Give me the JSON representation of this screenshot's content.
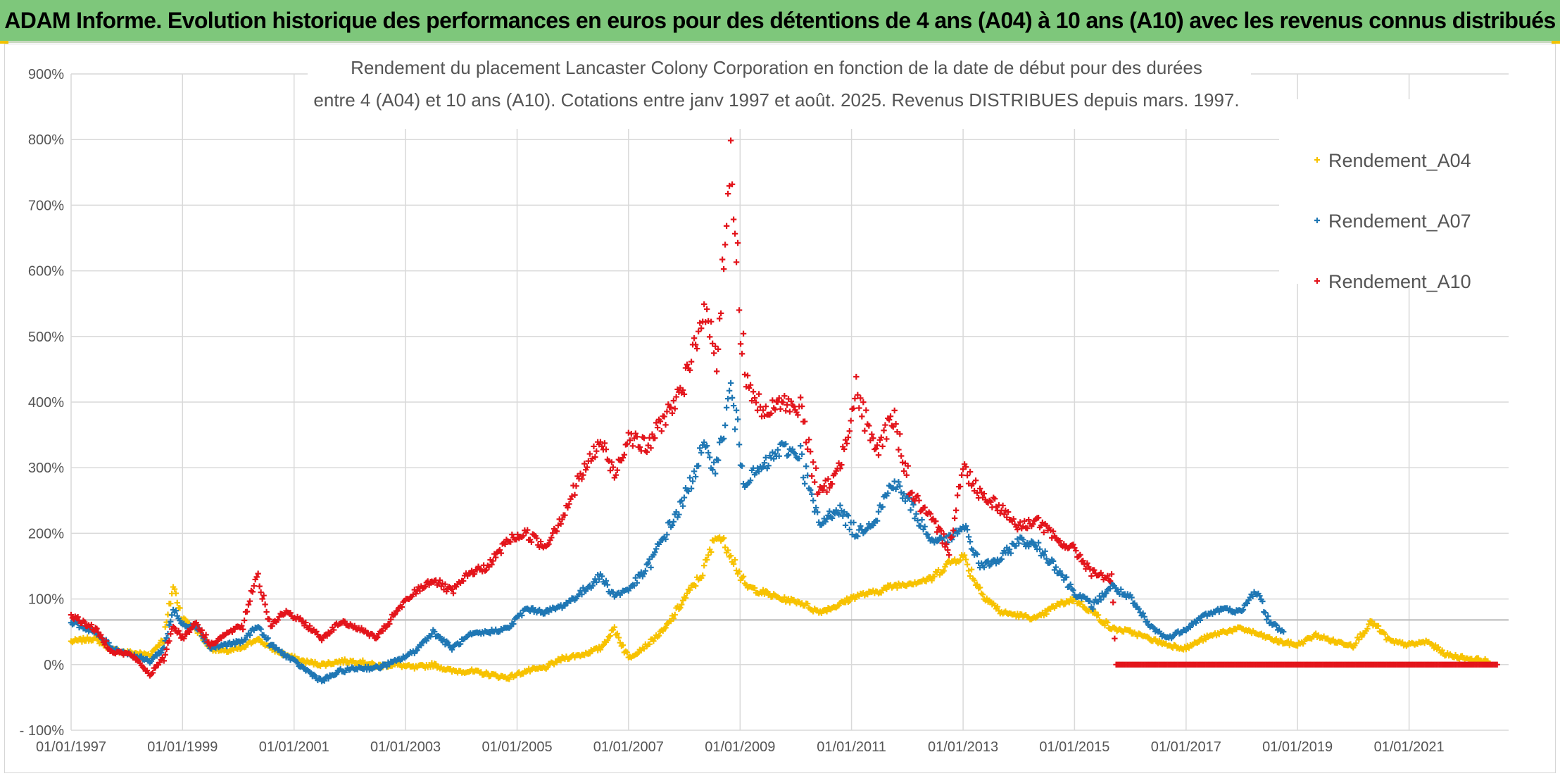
{
  "header": {
    "banner_title": "ADAM Informe. Evolution historique des performances en euros pour des détentions de 4 ans (A04) à 10 ans (A10) avec les revenus connus distribués"
  },
  "colors": {
    "banner_bg": "#7ec77b",
    "corner_accent": "#f2c200",
    "Rendement_A04": "#f7c200",
    "Rendement_A07": "#1f77b4",
    "Rendement_A10": "#e3141b"
  },
  "chart_data": {
    "type": "scatter",
    "title_lines": [
      "Rendement du placement Lancaster Colony Corporation en fonction de la date de début pour des durées",
      "entre 4 (A04) et 10 ans (A10). Cotations entre janv 1997 et août. 2025. Revenus DISTRIBUES depuis mars. 1997."
    ],
    "y_ticks": [
      "900%",
      "800%",
      "700%",
      "600%",
      "500%",
      "400%",
      "300%",
      "200%",
      "100%",
      "0%",
      "- 100%"
    ],
    "x_ticks": [
      "01/01/1997",
      "01/01/1999",
      "01/01/2001",
      "01/01/2003",
      "01/01/2005",
      "01/01/2007",
      "01/01/2009",
      "01/01/2011",
      "01/01/2013",
      "01/01/2015",
      "01/01/2017",
      "01/01/2019",
      "01/01/2021"
    ],
    "ylim": [
      -100,
      900
    ],
    "xlim": [
      "1997-01-01",
      "2022-10-15"
    ],
    "grid": true,
    "legend_position": "top-right",
    "marker": "+",
    "reference_line_y": 68,
    "series": [
      {
        "name": "Rendement_A04",
        "points": [
          [
            "1997-01-01",
            35
          ],
          [
            "1997-06-01",
            40
          ],
          [
            "1997-10-01",
            22
          ],
          [
            "1998-02-01",
            18
          ],
          [
            "1998-06-01",
            15
          ],
          [
            "1998-09-01",
            40
          ],
          [
            "1998-11-01",
            120
          ],
          [
            "1999-01-01",
            70
          ],
          [
            "1999-04-01",
            55
          ],
          [
            "1999-07-01",
            25
          ],
          [
            "1999-10-01",
            20
          ],
          [
            "2000-02-01",
            25
          ],
          [
            "2000-05-01",
            40
          ],
          [
            "2000-08-01",
            25
          ],
          [
            "2000-11-01",
            15
          ],
          [
            "2001-03-01",
            5
          ],
          [
            "2001-07-01",
            0
          ],
          [
            "2001-11-01",
            5
          ],
          [
            "2002-03-01",
            5
          ],
          [
            "2002-07-01",
            -2
          ],
          [
            "2002-11-01",
            0
          ],
          [
            "2003-03-01",
            -5
          ],
          [
            "2003-07-01",
            0
          ],
          [
            "2003-11-01",
            -10
          ],
          [
            "2004-03-01",
            -10
          ],
          [
            "2004-07-01",
            -15
          ],
          [
            "2004-11-01",
            -20
          ],
          [
            "2005-03-01",
            -10
          ],
          [
            "2005-07-01",
            -5
          ],
          [
            "2005-11-01",
            10
          ],
          [
            "2006-03-01",
            15
          ],
          [
            "2006-07-01",
            25
          ],
          [
            "2006-10-01",
            55
          ],
          [
            "2007-01-01",
            10
          ],
          [
            "2007-05-01",
            30
          ],
          [
            "2007-09-01",
            55
          ],
          [
            "2008-01-01",
            100
          ],
          [
            "2008-05-01",
            140
          ],
          [
            "2008-08-01",
            200
          ],
          [
            "2008-11-01",
            170
          ],
          [
            "2009-02-01",
            120
          ],
          [
            "2009-06-01",
            110
          ],
          [
            "2009-10-01",
            100
          ],
          [
            "2010-02-01",
            95
          ],
          [
            "2010-06-01",
            80
          ],
          [
            "2010-10-01",
            90
          ],
          [
            "2011-02-01",
            105
          ],
          [
            "2011-06-01",
            110
          ],
          [
            "2011-10-01",
            120
          ],
          [
            "2012-02-01",
            125
          ],
          [
            "2012-06-01",
            130
          ],
          [
            "2012-10-01",
            155
          ],
          [
            "2013-01-01",
            165
          ],
          [
            "2013-05-01",
            110
          ],
          [
            "2013-09-01",
            80
          ],
          [
            "2014-01-01",
            75
          ],
          [
            "2014-05-01",
            70
          ],
          [
            "2014-09-01",
            90
          ],
          [
            "2015-01-01",
            100
          ],
          [
            "2015-05-01",
            80
          ],
          [
            "2015-09-01",
            55
          ],
          [
            "2016-01-01",
            50
          ],
          [
            "2016-05-01",
            40
          ],
          [
            "2016-09-01",
            30
          ],
          [
            "2017-01-01",
            25
          ],
          [
            "2017-05-01",
            40
          ],
          [
            "2017-09-01",
            50
          ],
          [
            "2018-01-01",
            55
          ],
          [
            "2018-05-01",
            45
          ],
          [
            "2018-09-01",
            35
          ],
          [
            "2019-01-01",
            30
          ],
          [
            "2019-05-01",
            45
          ],
          [
            "2019-09-01",
            35
          ],
          [
            "2020-01-01",
            30
          ],
          [
            "2020-05-01",
            65
          ],
          [
            "2020-09-01",
            35
          ],
          [
            "2021-01-01",
            30
          ],
          [
            "2021-05-01",
            35
          ],
          [
            "2021-09-01",
            15
          ],
          [
            "2022-01-01",
            10
          ],
          [
            "2022-06-01",
            5
          ]
        ]
      },
      {
        "name": "Rendement_A07",
        "points": [
          [
            "1997-01-01",
            65
          ],
          [
            "1997-06-01",
            50
          ],
          [
            "1997-10-01",
            25
          ],
          [
            "1998-02-01",
            15
          ],
          [
            "1998-06-01",
            5
          ],
          [
            "1998-09-01",
            25
          ],
          [
            "1998-11-01",
            85
          ],
          [
            "1999-01-01",
            60
          ],
          [
            "1999-04-01",
            60
          ],
          [
            "1999-07-01",
            25
          ],
          [
            "1999-10-01",
            30
          ],
          [
            "2000-02-01",
            35
          ],
          [
            "2000-05-01",
            60
          ],
          [
            "2000-08-01",
            30
          ],
          [
            "2000-11-01",
            15
          ],
          [
            "2001-03-01",
            -5
          ],
          [
            "2001-07-01",
            -25
          ],
          [
            "2001-11-01",
            -10
          ],
          [
            "2002-03-01",
            -5
          ],
          [
            "2002-07-01",
            -5
          ],
          [
            "2002-11-01",
            5
          ],
          [
            "2003-03-01",
            20
          ],
          [
            "2003-07-01",
            50
          ],
          [
            "2003-11-01",
            25
          ],
          [
            "2004-03-01",
            45
          ],
          [
            "2004-07-01",
            50
          ],
          [
            "2004-11-01",
            55
          ],
          [
            "2005-03-01",
            85
          ],
          [
            "2005-07-01",
            80
          ],
          [
            "2005-11-01",
            90
          ],
          [
            "2006-03-01",
            110
          ],
          [
            "2006-07-01",
            135
          ],
          [
            "2006-10-01",
            105
          ],
          [
            "2007-01-01",
            115
          ],
          [
            "2007-05-01",
            145
          ],
          [
            "2007-09-01",
            200
          ],
          [
            "2008-01-01",
            250
          ],
          [
            "2008-05-01",
            330
          ],
          [
            "2008-08-01",
            300
          ],
          [
            "2008-11-01",
            420
          ],
          [
            "2009-02-01",
            280
          ],
          [
            "2009-06-01",
            300
          ],
          [
            "2009-10-01",
            330
          ],
          [
            "2010-02-01",
            320
          ],
          [
            "2010-06-01",
            210
          ],
          [
            "2010-10-01",
            240
          ],
          [
            "2011-02-01",
            200
          ],
          [
            "2011-06-01",
            220
          ],
          [
            "2011-10-01",
            280
          ],
          [
            "2012-02-01",
            240
          ],
          [
            "2012-06-01",
            190
          ],
          [
            "2012-10-01",
            190
          ],
          [
            "2013-01-01",
            210
          ],
          [
            "2013-05-01",
            150
          ],
          [
            "2013-09-01",
            160
          ],
          [
            "2014-01-01",
            190
          ],
          [
            "2014-05-01",
            180
          ],
          [
            "2014-09-01",
            150
          ],
          [
            "2015-01-01",
            110
          ],
          [
            "2015-05-01",
            90
          ],
          [
            "2015-09-01",
            120
          ],
          [
            "2016-01-01",
            100
          ],
          [
            "2016-05-01",
            60
          ],
          [
            "2016-09-01",
            40
          ],
          [
            "2017-01-01",
            55
          ],
          [
            "2017-05-01",
            75
          ],
          [
            "2017-09-01",
            85
          ],
          [
            "2018-01-01",
            80
          ],
          [
            "2018-04-01",
            115
          ],
          [
            "2018-07-01",
            65
          ],
          [
            "2018-10-01",
            50
          ]
        ]
      },
      {
        "name": "Rendement_A10",
        "points": [
          [
            "1997-01-01",
            75
          ],
          [
            "1997-06-01",
            55
          ],
          [
            "1997-10-01",
            20
          ],
          [
            "1998-02-01",
            15
          ],
          [
            "1998-06-01",
            -15
          ],
          [
            "1998-09-01",
            10
          ],
          [
            "1998-11-01",
            60
          ],
          [
            "1999-01-01",
            40
          ],
          [
            "1999-04-01",
            65
          ],
          [
            "1999-07-01",
            30
          ],
          [
            "1999-10-01",
            45
          ],
          [
            "2000-02-01",
            60
          ],
          [
            "2000-05-01",
            140
          ],
          [
            "2000-08-01",
            60
          ],
          [
            "2000-11-01",
            80
          ],
          [
            "2001-03-01",
            65
          ],
          [
            "2001-07-01",
            40
          ],
          [
            "2001-11-01",
            65
          ],
          [
            "2002-03-01",
            55
          ],
          [
            "2002-07-01",
            40
          ],
          [
            "2002-11-01",
            80
          ],
          [
            "2003-03-01",
            110
          ],
          [
            "2003-07-01",
            130
          ],
          [
            "2003-11-01",
            110
          ],
          [
            "2004-03-01",
            140
          ],
          [
            "2004-07-01",
            150
          ],
          [
            "2004-11-01",
            190
          ],
          [
            "2005-03-01",
            200
          ],
          [
            "2005-07-01",
            180
          ],
          [
            "2005-11-01",
            230
          ],
          [
            "2006-03-01",
            290
          ],
          [
            "2006-07-01",
            340
          ],
          [
            "2006-10-01",
            290
          ],
          [
            "2007-01-01",
            350
          ],
          [
            "2007-05-01",
            330
          ],
          [
            "2007-09-01",
            380
          ],
          [
            "2008-01-01",
            420
          ],
          [
            "2008-05-01",
            540
          ],
          [
            "2008-08-01",
            480
          ],
          [
            "2008-11-01",
            760
          ],
          [
            "2009-02-01",
            440
          ],
          [
            "2009-06-01",
            380
          ],
          [
            "2009-10-01",
            400
          ],
          [
            "2010-02-01",
            390
          ],
          [
            "2010-06-01",
            260
          ],
          [
            "2010-10-01",
            290
          ],
          [
            "2011-02-01",
            420
          ],
          [
            "2011-06-01",
            320
          ],
          [
            "2011-10-01",
            380
          ],
          [
            "2012-02-01",
            260
          ],
          [
            "2012-06-01",
            220
          ],
          [
            "2012-10-01",
            180
          ],
          [
            "2013-01-01",
            300
          ],
          [
            "2013-05-01",
            260
          ],
          [
            "2013-09-01",
            240
          ],
          [
            "2014-01-01",
            210
          ],
          [
            "2014-05-01",
            220
          ],
          [
            "2014-09-01",
            190
          ],
          [
            "2015-01-01",
            175
          ],
          [
            "2015-05-01",
            140
          ],
          [
            "2015-09-01",
            130
          ],
          [
            "2015-10-01",
            0
          ],
          [
            "2016-06-01",
            0
          ],
          [
            "2017-06-01",
            0
          ],
          [
            "2018-06-01",
            0
          ],
          [
            "2019-06-01",
            0
          ],
          [
            "2020-06-01",
            0
          ],
          [
            "2021-06-01",
            0
          ],
          [
            "2022-08-01",
            0
          ]
        ]
      }
    ]
  }
}
